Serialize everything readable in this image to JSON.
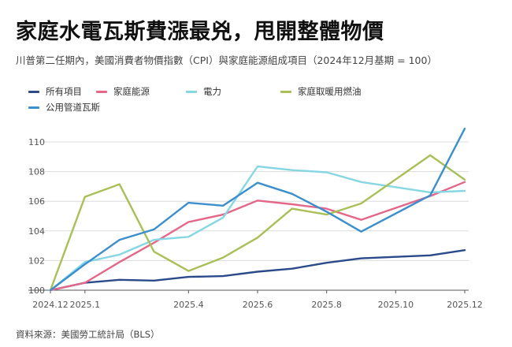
{
  "header": {
    "title": "家庭水電瓦斯費漲最兇，甩開整體物價",
    "subtitle": "川普第二任期內，美國消費者物價指數（CPI）與家庭能源組成項目（2024年12月基期 = 100）"
  },
  "footer": {
    "source": "資料來源：美國勞工統計局（BLS）"
  },
  "chart_data": {
    "type": "line",
    "title": "家庭水電瓦斯費漲最兇，甩開整體物價",
    "subtitle": "川普第二任期內，美國消費者物價指數（CPI）與家庭能源組成項目（2024年12月基期 = 100）",
    "xlabel": "",
    "ylabel": "",
    "x": [
      "2024.12",
      "2025.1",
      "2025.2",
      "2025.3",
      "2025.4",
      "2025.5",
      "2025.6",
      "2025.7",
      "2025.8",
      "2025.9",
      "2025.10",
      "2025.11",
      "2025.12"
    ],
    "x_tick_labels": [
      "2024.12",
      "2025.1",
      "2025.4",
      "2025.6",
      "2025.8",
      "2025.10",
      "2025.12"
    ],
    "y_ticks": [
      100,
      102,
      104,
      106,
      108,
      110
    ],
    "ylim": [
      100,
      111
    ],
    "grid": true,
    "legend_position": "top-left",
    "series": [
      {
        "name": "所有項目",
        "color": "#2a4a8a",
        "values": [
          100.0,
          100.5,
          100.7,
          100.65,
          100.9,
          100.95,
          101.25,
          101.45,
          101.85,
          102.15,
          102.25,
          102.35,
          102.7
        ]
      },
      {
        "name": "家庭能源",
        "color": "#e4678a",
        "values": [
          100.0,
          100.5,
          101.9,
          103.2,
          104.6,
          105.1,
          106.05,
          105.8,
          105.5,
          104.75,
          null,
          106.35,
          107.3
        ]
      },
      {
        "name": "電力",
        "color": "#86d7e3",
        "values": [
          100.0,
          101.9,
          102.4,
          103.4,
          103.6,
          104.9,
          108.35,
          108.1,
          107.95,
          107.3,
          null,
          106.6,
          106.7
        ]
      },
      {
        "name": "家庭取暖用燃油",
        "color": "#a9bf58",
        "values": [
          100.0,
          106.3,
          107.15,
          102.6,
          101.3,
          102.2,
          103.55,
          105.5,
          105.1,
          105.85,
          null,
          109.1,
          107.45
        ]
      },
      {
        "name": "公用管道瓦斯",
        "color": "#3b8fcc",
        "values": [
          100.0,
          101.75,
          103.4,
          104.1,
          105.9,
          105.7,
          107.25,
          106.5,
          105.3,
          103.95,
          null,
          106.4,
          110.9
        ]
      }
    ]
  }
}
